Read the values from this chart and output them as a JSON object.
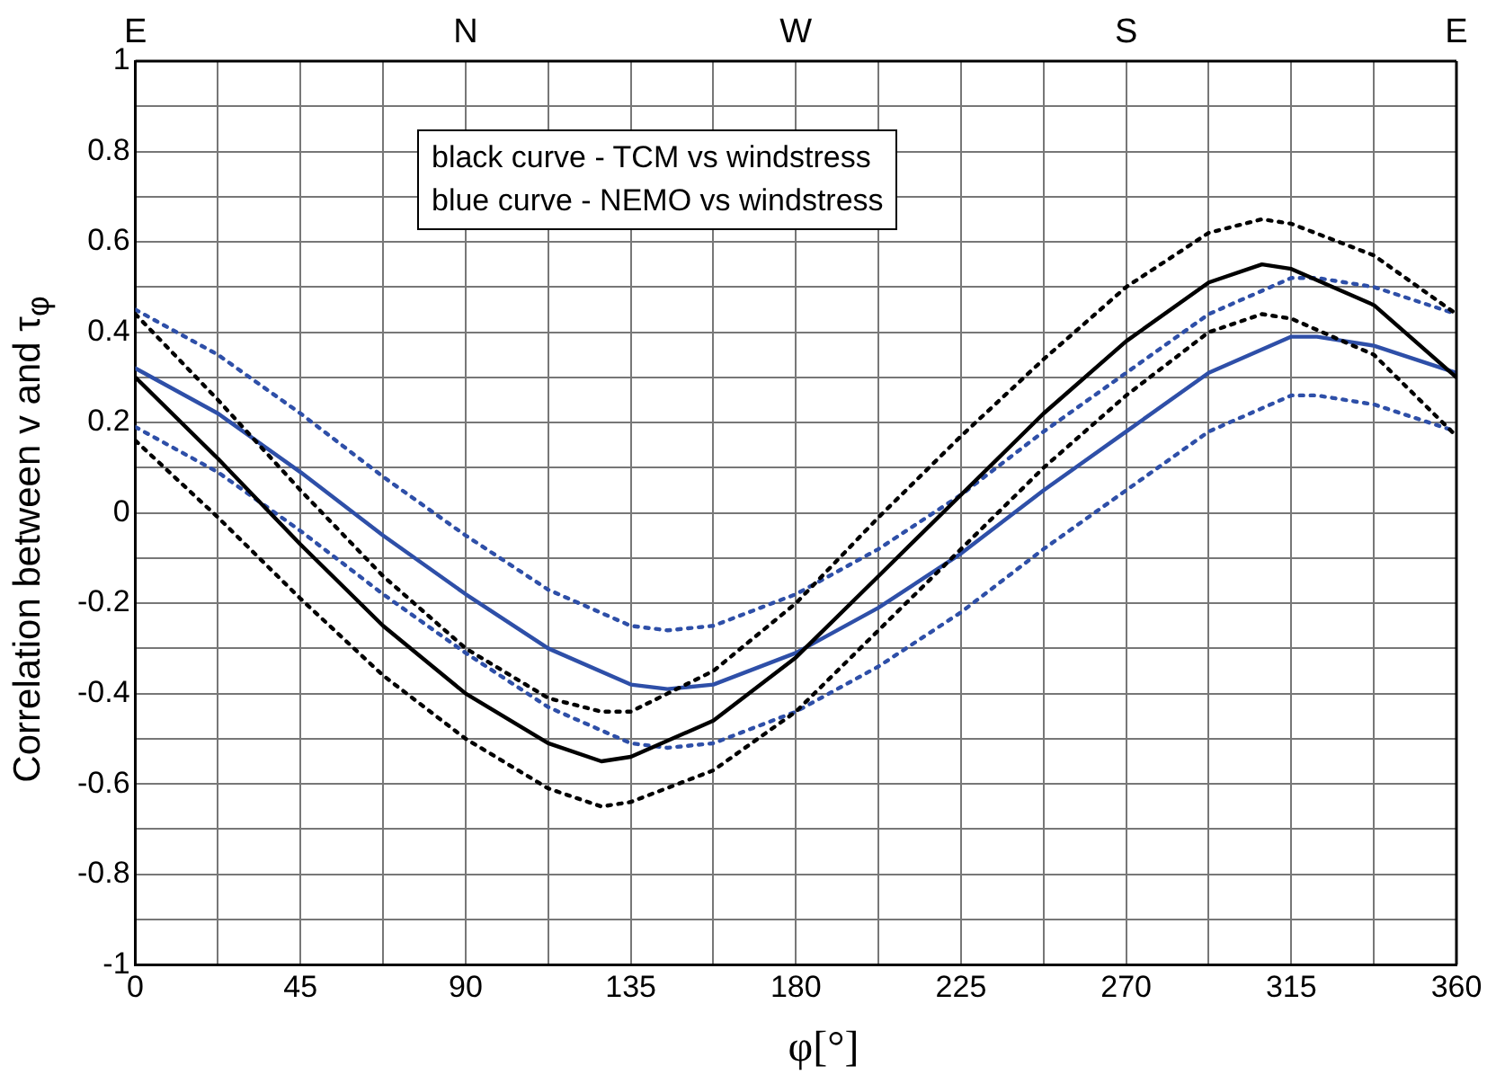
{
  "chart_data": {
    "type": "line",
    "xlabel": "φ[°]",
    "ylabel": "Correlation between v and τ$_{φ}$",
    "annotations": [
      "black curve - TCM vs windstress",
      "blue curve - NEMO vs windstress",
      "E",
      "N",
      "W",
      "S",
      "E"
    ],
    "xlim": [
      0,
      360
    ],
    "xticks": [
      0,
      {
        "value": 22.5,
        "label": null
      },
      45,
      {
        "value": 67.5,
        "label": null
      },
      90,
      {
        "value": 112.5,
        "label": null
      },
      135,
      {
        "value": 157.5,
        "label": null
      },
      180,
      {
        "value": 202.5,
        "label": null
      },
      225,
      {
        "value": 247.5,
        "label": null
      },
      270,
      {
        "value": 292.5,
        "label": null
      },
      315,
      {
        "value": 337.5,
        "label": null
      },
      360
    ],
    "ylim": [
      -1,
      1
    ],
    "yticks": [
      -1,
      {
        "value": -0.9,
        "label": null
      },
      -0.8,
      {
        "value": -0.7,
        "label": null
      },
      -0.6,
      {
        "value": -0.5,
        "label": null
      },
      -0.4,
      {
        "value": -0.3,
        "label": null
      },
      -0.2,
      {
        "value": -0.1,
        "label": null
      },
      0,
      {
        "value": 0.1,
        "label": null
      },
      0.2,
      {
        "value": 0.3,
        "label": null
      },
      0.4,
      {
        "value": 0.5,
        "label": null
      },
      0.6,
      {
        "value": 0.7,
        "label": null
      },
      0.8,
      {
        "value": 0.9,
        "label": null
      },
      1
    ],
    "grid": true,
    "legend": false,
    "marker": "none",
    "series": [
      {
        "color": "#000000",
        "line_style": "solid",
        "x": [
          0,
          22.5,
          45,
          67.5,
          90,
          112.5,
          127,
          135,
          157.5,
          180,
          202.5,
          225,
          247.5,
          270,
          292.5,
          307,
          315,
          337.5,
          360
        ],
        "values": [
          0.3,
          0.12,
          -0.07,
          -0.25,
          -0.4,
          -0.51,
          -0.55,
          -0.54,
          -0.46,
          -0.32,
          -0.14,
          0.04,
          0.22,
          0.38,
          0.51,
          0.55,
          0.54,
          0.46,
          0.3
        ]
      },
      {
        "color": "#000000",
        "line_style": "dotted",
        "x": [
          0,
          22.5,
          45,
          67.5,
          90,
          112.5,
          127,
          135,
          157.5,
          180,
          202.5,
          225,
          247.5,
          270,
          292.5,
          307,
          315,
          337.5,
          360
        ],
        "values": [
          0.44,
          0.25,
          0.05,
          -0.14,
          -0.3,
          -0.41,
          -0.44,
          -0.44,
          -0.35,
          -0.2,
          -0.01,
          0.17,
          0.34,
          0.5,
          0.62,
          0.65,
          0.64,
          0.57,
          0.44
        ]
      },
      {
        "color": "#000000",
        "line_style": "dotted",
        "x": [
          0,
          22.5,
          45,
          67.5,
          90,
          112.5,
          127,
          135,
          157.5,
          180,
          202.5,
          225,
          247.5,
          270,
          292.5,
          307,
          315,
          337.5,
          360
        ],
        "values": [
          0.16,
          -0.01,
          -0.19,
          -0.36,
          -0.5,
          -0.61,
          -0.65,
          -0.64,
          -0.57,
          -0.44,
          -0.26,
          -0.08,
          0.1,
          0.26,
          0.4,
          0.44,
          0.43,
          0.35,
          0.17
        ]
      },
      {
        "color": "#2e4fa8",
        "line_style": "solid",
        "x": [
          0,
          22.5,
          45,
          67.5,
          90,
          112.5,
          135,
          145,
          157.5,
          180,
          202.5,
          225,
          247.5,
          270,
          292.5,
          315,
          322,
          337.5,
          360
        ],
        "values": [
          0.32,
          0.22,
          0.09,
          -0.05,
          -0.18,
          -0.3,
          -0.38,
          -0.39,
          -0.38,
          -0.31,
          -0.21,
          -0.09,
          0.05,
          0.18,
          0.31,
          0.39,
          0.39,
          0.37,
          0.31
        ]
      },
      {
        "color": "#2e4fa8",
        "line_style": "dotted",
        "x": [
          0,
          22.5,
          45,
          67.5,
          90,
          112.5,
          135,
          145,
          157.5,
          180,
          202.5,
          225,
          247.5,
          270,
          292.5,
          315,
          322,
          337.5,
          360
        ],
        "values": [
          0.45,
          0.35,
          0.22,
          0.08,
          -0.05,
          -0.17,
          -0.25,
          -0.26,
          -0.25,
          -0.18,
          -0.08,
          0.04,
          0.18,
          0.31,
          0.44,
          0.52,
          0.52,
          0.5,
          0.44
        ]
      },
      {
        "color": "#2e4fa8",
        "line_style": "dotted",
        "x": [
          0,
          22.5,
          45,
          67.5,
          90,
          112.5,
          135,
          145,
          157.5,
          180,
          202.5,
          225,
          247.5,
          270,
          292.5,
          315,
          322,
          337.5,
          360
        ],
        "values": [
          0.19,
          0.09,
          -0.04,
          -0.18,
          -0.31,
          -0.43,
          -0.51,
          -0.52,
          -0.51,
          -0.44,
          -0.34,
          -0.22,
          -0.08,
          0.05,
          0.18,
          0.26,
          0.26,
          0.24,
          0.18
        ]
      }
    ]
  }
}
